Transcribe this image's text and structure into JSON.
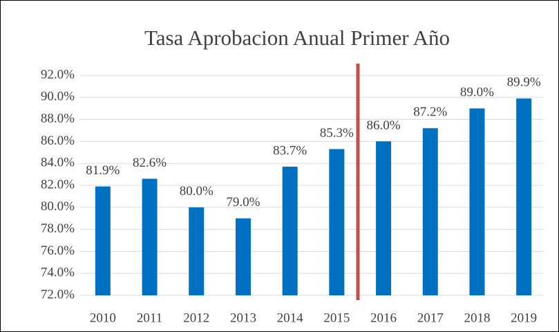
{
  "chart_data": {
    "type": "bar",
    "title": "Tasa Aprobacion Anual Primer Año",
    "categories": [
      "2010",
      "2011",
      "2012",
      "2013",
      "2014",
      "2015",
      "2016",
      "2017",
      "2018",
      "2019"
    ],
    "values": [
      81.9,
      82.6,
      80.0,
      79.0,
      83.7,
      85.3,
      86.0,
      87.2,
      89.0,
      89.9
    ],
    "value_labels": [
      "81.9%",
      "82.6%",
      "80.0%",
      "79.0%",
      "83.7%",
      "85.3%",
      "86.0%",
      "87.2%",
      "89.0%",
      "89.9%"
    ],
    "color": "#0070c0",
    "ylim": [
      72,
      92
    ],
    "yticks": [
      {
        "value": 72,
        "label": "72.0%"
      },
      {
        "value": 74,
        "label": "74.0%"
      },
      {
        "value": 76,
        "label": "76.0%"
      },
      {
        "value": 78,
        "label": "78.0%"
      },
      {
        "value": 80,
        "label": "80.0%"
      },
      {
        "value": 82,
        "label": "82.0%"
      },
      {
        "value": 84,
        "label": "84.0%"
      },
      {
        "value": 86,
        "label": "86.0%"
      },
      {
        "value": 88,
        "label": "88.0%"
      },
      {
        "value": 90,
        "label": "90.0%"
      },
      {
        "value": 92,
        "label": "92.0%"
      }
    ],
    "grid": true
  }
}
